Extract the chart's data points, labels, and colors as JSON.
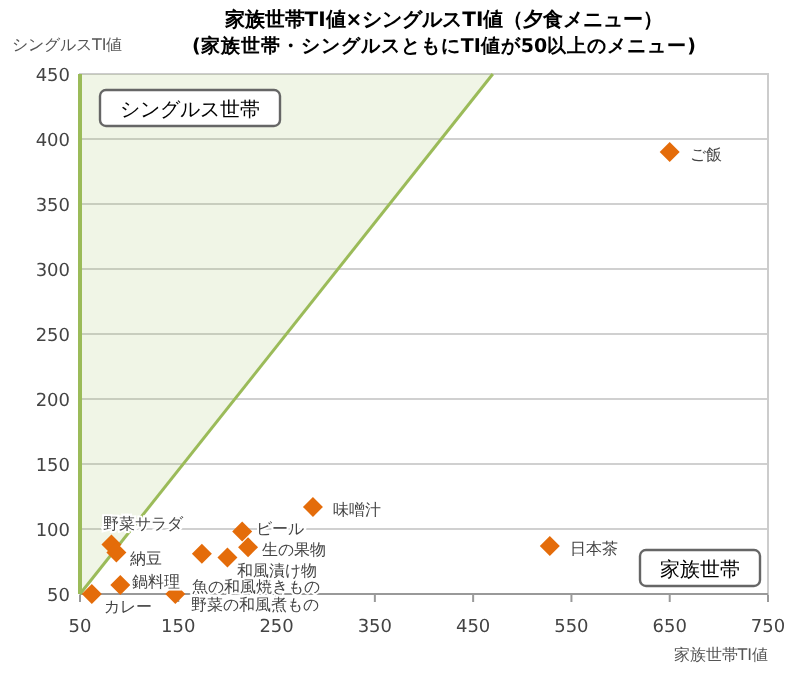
{
  "chart_data": {
    "type": "scatter",
    "title": "家族世帯TI値×シングルスTI値（夕食メニュー）",
    "subtitle": "(家族世帯・シングルスともにTI値が50以上のメニュー)",
    "xlabel": "家族世帯TI値",
    "ylabel": "シングルスTI値",
    "xlim": [
      50,
      750
    ],
    "xticks": [
      50,
      150,
      250,
      350,
      450,
      550,
      650,
      750
    ],
    "ylim": [
      50,
      450
    ],
    "yticks": [
      50,
      100,
      150,
      200,
      250,
      300,
      350,
      400,
      450
    ],
    "grid": "y",
    "marker": "diamond",
    "series": [
      {
        "color": "#e46c0a",
        "x": [
          82,
          87,
          91,
          62,
          174,
          147,
          200,
          221,
          215,
          287,
          650,
          528
        ],
        "values": [
          88,
          82,
          57,
          50,
          81,
          50,
          78,
          86,
          98,
          117,
          390,
          87
        ]
      },
      {
        "type": "area",
        "color": "#9bbb59",
        "marker": "none",
        "x": [
          50,
          470
        ],
        "values": [
          50,
          450
        ]
      }
    ],
    "annotations": [
      {
        "text": "野菜サラダ",
        "x": 82,
        "y": 88
      },
      {
        "text": "納豆",
        "x": 87,
        "y": 82
      },
      {
        "text": "鍋料理",
        "x": 91,
        "y": 57
      },
      {
        "text": "カレー",
        "x": 62,
        "y": 50
      },
      {
        "text": "魚の和風焼きもの",
        "x": 174,
        "y": 81
      },
      {
        "text": "野菜の和風煮もの",
        "x": 147,
        "y": 50
      },
      {
        "text": "和風漬け物",
        "x": 200,
        "y": 78
      },
      {
        "text": "生の果物",
        "x": 221,
        "y": 86
      },
      {
        "text": "ビール",
        "x": 215,
        "y": 98
      },
      {
        "text": "味噌汁",
        "x": 287,
        "y": 117
      },
      {
        "text": "ご飯",
        "x": 650,
        "y": 390
      },
      {
        "text": "日本茶",
        "x": 528,
        "y": 87
      },
      "シングルス世帯",
      "家族世帯"
    ]
  }
}
